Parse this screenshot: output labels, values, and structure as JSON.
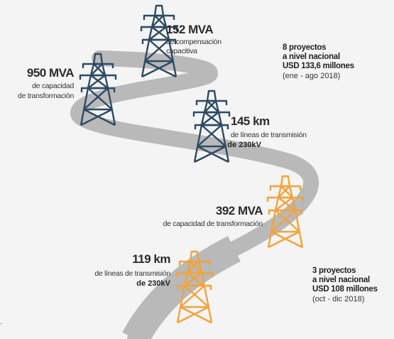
{
  "blocks": [
    {
      "headline": "152 MVA",
      "lines": [
        "de compensación",
        "capacitiva"
      ]
    },
    {
      "headline": "950 MVA",
      "lines": [
        "de capacidad",
        "de transformación"
      ]
    },
    {
      "headline": "145 km",
      "lines": [
        "de líneas de transmisión",
        "de 230kV"
      ]
    },
    {
      "headline": "392 MVA",
      "lines": [
        "de capacidad de transformación"
      ]
    },
    {
      "headline": "119 km",
      "lines": [
        "de líneas de transmisión",
        "de 230kV"
      ]
    }
  ],
  "summaries": [
    {
      "lines": [
        "8 proyectos",
        "a nivel nacional",
        "USD 133,6 millones"
      ],
      "period": "(ene - ago 2018)"
    },
    {
      "lines": [
        "3 proyectos",
        "a nivel nacional",
        "USD 108 millones"
      ],
      "period": "(oct - dic 2018)"
    }
  ],
  "fragment": "."
}
